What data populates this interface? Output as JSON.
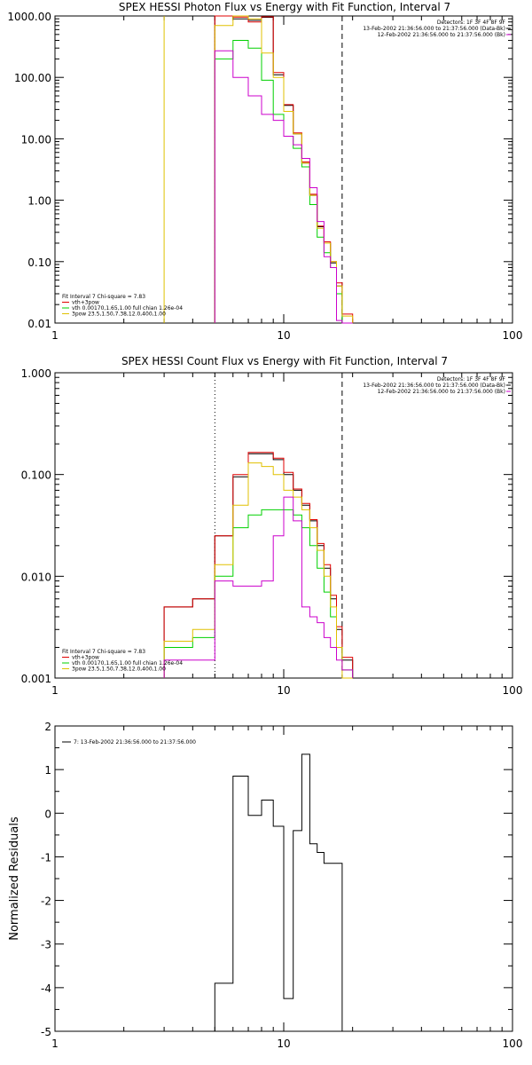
{
  "chart_data": [
    {
      "type": "line",
      "title": "SPEX HESSI Photon Flux vs Energy with Fit Function, Interval 7",
      "xlabel": "",
      "ylabel": "",
      "xscale": "log",
      "yscale": "log",
      "xlim": [
        1,
        100
      ],
      "ylim": [
        0.01,
        1000
      ],
      "x_tick_labels": [
        "1",
        "10",
        "100"
      ],
      "y_tick_labels": [
        "0.01",
        "0.10",
        "1.00",
        "10.00",
        "100.00",
        "1000.00"
      ],
      "header_lines": [
        "Detectors: 1F 3F 4F 8F 9F",
        "13-Feb-2002 21:36:56.000 to 21:37:56.000 (Data-Bk)",
        "12-Feb-2002 21:36:56.000 to 21:37:56.000 (Bk)"
      ],
      "legend_lines": [
        "Fit Interval 7   Chi-square = 7.83",
        "vth+3pow",
        "vth 0.00170,1.65,1.00  full chian 1.26e-04",
        "3pow 23.5,1.50,7.38,12.0,400,1.00"
      ],
      "vlines": [
        {
          "x": 3.0,
          "color": "#e0c000",
          "style": "solid"
        },
        {
          "x": 5.0,
          "color": "#cc00cc",
          "style": "dotted"
        },
        {
          "x": 18.0,
          "color": "#000000",
          "style": "dashed"
        }
      ],
      "bin_edges": [
        5.0,
        6.0,
        7.0,
        8.0,
        9.0,
        10.0,
        11.0,
        12.0,
        13.0,
        14.0,
        15.0,
        16.0,
        17.0,
        18.0,
        20.0
      ],
      "series": [
        {
          "color": "#000000",
          "values": [
            1000,
            900,
            850,
            950,
            110,
            35,
            12,
            4.0,
            1.2,
            0.37,
            0.2,
            0.095,
            0.04,
            0.01
          ]
        },
        {
          "color": "#e00000",
          "values": [
            1000,
            960,
            800,
            970,
            120,
            36,
            12.5,
            4.2,
            1.25,
            0.38,
            0.21,
            0.1,
            0.045,
            0.014
          ]
        },
        {
          "color": "#00d000",
          "values": [
            200,
            400,
            300,
            90,
            25,
            11,
            7,
            3.5,
            0.85,
            0.25,
            0.14,
            0.08,
            0.03,
            0.01
          ]
        },
        {
          "color": "#e0c000",
          "values": [
            700,
            1000,
            900,
            250,
            100,
            28,
            12,
            4.0,
            1.2,
            0.35,
            0.2,
            0.1,
            0.04,
            0.013
          ]
        },
        {
          "color": "#cc00cc",
          "values": [
            270,
            100,
            50,
            25,
            20,
            11,
            8.0,
            4.8,
            1.6,
            0.45,
            0.12,
            0.08,
            0.011,
            0.005
          ]
        }
      ]
    },
    {
      "type": "line",
      "title": "SPEX HESSI Count Flux vs Energy with Fit Function, Interval 7",
      "xlabel": "",
      "ylabel": "",
      "xscale": "log",
      "yscale": "log",
      "xlim": [
        1,
        100
      ],
      "ylim": [
        0.001,
        1.0
      ],
      "x_tick_labels": [
        "1",
        "10",
        "100"
      ],
      "y_tick_labels": [
        "0.001",
        "0.010",
        "0.100",
        "1.000"
      ],
      "header_lines": [
        "Detectors: 1F 3F 4F 8F 9F",
        "13-Feb-2002 21:36:56.000 to 21:37:56.000 (Data-Bk)",
        "12-Feb-2002 21:36:56.000 to 21:37:56.000 (Bk)"
      ],
      "legend_lines": [
        "Fit Interval 7   Chi-square = 7.83",
        "vth+3pow",
        "vth 0.00170,1.65,1.00  full chian 1.26e-04",
        "3pow 23.5,1.50,7.38,12.0,400,1.00"
      ],
      "vlines": [
        {
          "x": 5.0,
          "color": "#000000",
          "style": "dotted"
        },
        {
          "x": 18.0,
          "color": "#000000",
          "style": "dashed"
        }
      ],
      "bin_edges": [
        3.0,
        4.0,
        5.0,
        6.0,
        7.0,
        8.0,
        9.0,
        10.0,
        11.0,
        12.0,
        13.0,
        14.0,
        15.0,
        16.0,
        17.0,
        18.0,
        20.0
      ],
      "series": [
        {
          "color": "#000000",
          "values": [
            0.005,
            0.006,
            0.025,
            0.095,
            0.16,
            0.16,
            0.14,
            0.1,
            0.07,
            0.05,
            0.035,
            0.02,
            0.012,
            0.006,
            0.003,
            0.0015
          ]
        },
        {
          "color": "#e00000",
          "values": [
            0.005,
            0.006,
            0.025,
            0.1,
            0.165,
            0.165,
            0.145,
            0.105,
            0.072,
            0.052,
            0.036,
            0.021,
            0.013,
            0.0065,
            0.0032,
            0.0016
          ]
        },
        {
          "color": "#00d000",
          "values": [
            0.002,
            0.0025,
            0.01,
            0.03,
            0.04,
            0.045,
            0.045,
            0.045,
            0.04,
            0.03,
            0.02,
            0.012,
            0.007,
            0.004,
            0.002,
            0.0012
          ]
        },
        {
          "color": "#e0c000",
          "values": [
            0.0023,
            0.003,
            0.013,
            0.05,
            0.13,
            0.12,
            0.1,
            0.07,
            0.06,
            0.045,
            0.03,
            0.018,
            0.01,
            0.005,
            0.002,
            0.001
          ]
        },
        {
          "color": "#cc00cc",
          "values": [
            0.0015,
            0.0015,
            0.009,
            0.008,
            0.008,
            0.009,
            0.025,
            0.06,
            0.035,
            0.005,
            0.004,
            0.0035,
            0.0025,
            0.002,
            0.0015,
            0.0012
          ]
        }
      ]
    },
    {
      "type": "line",
      "title": "",
      "xlabel": "",
      "ylabel": "Normalized Residuals",
      "xscale": "log",
      "yscale": "linear",
      "xlim": [
        1,
        100
      ],
      "ylim": [
        -5,
        2
      ],
      "x_tick_labels": [
        "1",
        "10",
        "100"
      ],
      "y_tick_labels": [
        "-5",
        "-4",
        "-3",
        "-2",
        "-1",
        "0",
        "1",
        "2"
      ],
      "legend_lines": [
        "7: 13-Feb-2002 21:36:56.000 to 21:37:56.000"
      ],
      "bin_edges": [
        5.0,
        6.0,
        7.0,
        8.0,
        9.0,
        10.0,
        11.0,
        12.0,
        13.0,
        14.0,
        15.0,
        16.0,
        17.0,
        18.0
      ],
      "series": [
        {
          "color": "#000000",
          "values": [
            -3.9,
            0.85,
            -0.05,
            0.3,
            -0.3,
            -4.25,
            -0.4,
            1.35,
            -0.7,
            -0.9,
            -1.15,
            -1.15,
            -1.15
          ]
        }
      ]
    }
  ]
}
